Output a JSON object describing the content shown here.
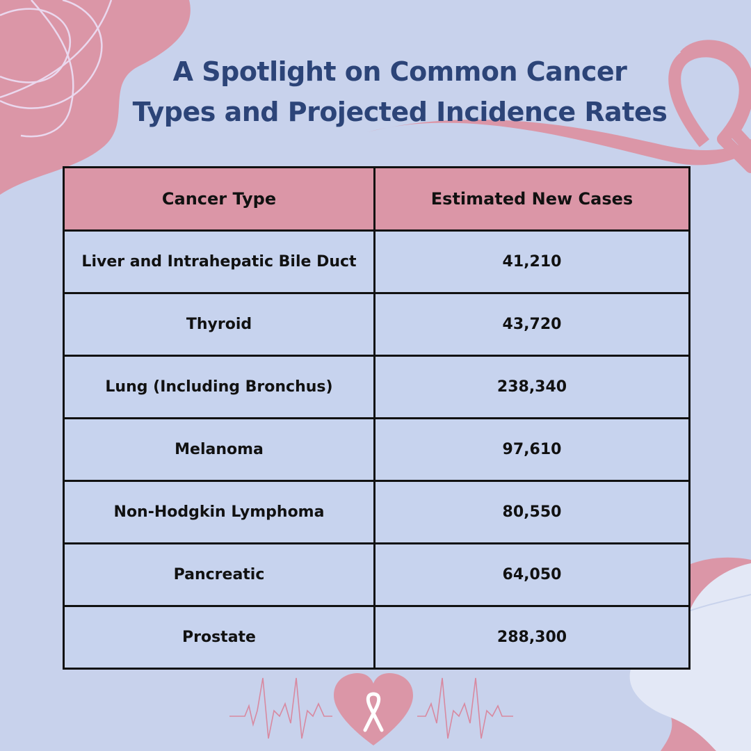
{
  "title": {
    "line1": "A Spotlight on Common Cancer",
    "line2": "Types and Projected Incidence Rates"
  },
  "colors": {
    "background": "#c8d2ec",
    "accent_pink": "#db96a7",
    "title_blue": "#2c4478",
    "cell_fill": "#c7d3ee"
  },
  "icons": [
    "awareness-ribbon-icon",
    "heart-icon",
    "heartbeat-line-icon"
  ],
  "chart_data": {
    "type": "table",
    "columns": [
      "Cancer Type",
      "Estimated New Cases"
    ],
    "rows": [
      [
        "Liver and Intrahepatic Bile Duct",
        "41,210"
      ],
      [
        "Thyroid",
        "43,720"
      ],
      [
        "Lung (Including Bronchus)",
        "238,340"
      ],
      [
        "Melanoma",
        "97,610"
      ],
      [
        "Non-Hodgkin Lymphoma",
        "80,550"
      ],
      [
        "Pancreatic",
        "64,050"
      ],
      [
        "Prostate",
        "288,300"
      ]
    ],
    "values": [
      41210,
      43720,
      238340,
      97610,
      80550,
      64050,
      288300
    ]
  }
}
